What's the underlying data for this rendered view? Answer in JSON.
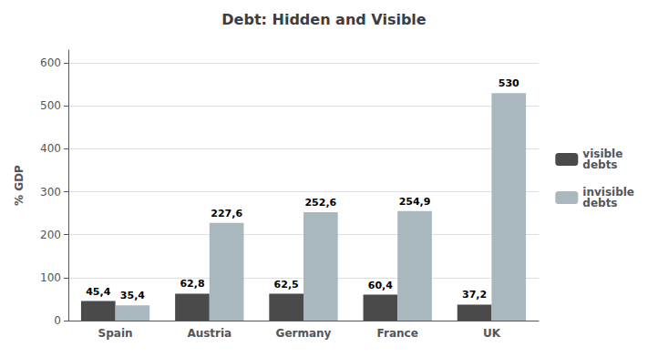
{
  "chart_data": {
    "type": "bar",
    "title": "Debt: Hidden and Visible",
    "categories": [
      "Spain",
      "Austria",
      "Germany",
      "France",
      "UK"
    ],
    "series": [
      {
        "name": "visible\ndebts",
        "color": "#4a4a4a",
        "values": [
          45.4,
          62.8,
          62.5,
          60.4,
          37.2
        ],
        "value_labels": [
          "45,4",
          "62,8",
          "62,5",
          "60,4",
          "37,2"
        ]
      },
      {
        "name": "invisible\ndebts",
        "color": "#a8b8be",
        "values": [
          35.4,
          227.6,
          252.6,
          254.9,
          530
        ],
        "value_labels": [
          "35,4",
          "227,6",
          "252,6",
          "254,9",
          "530"
        ]
      }
    ],
    "ylabel": "% GDP",
    "ylim": [
      0,
      630
    ],
    "yticks": [
      0,
      100,
      200,
      300,
      400,
      500,
      600
    ],
    "grid": true,
    "legend": "right",
    "data_labels": true
  }
}
